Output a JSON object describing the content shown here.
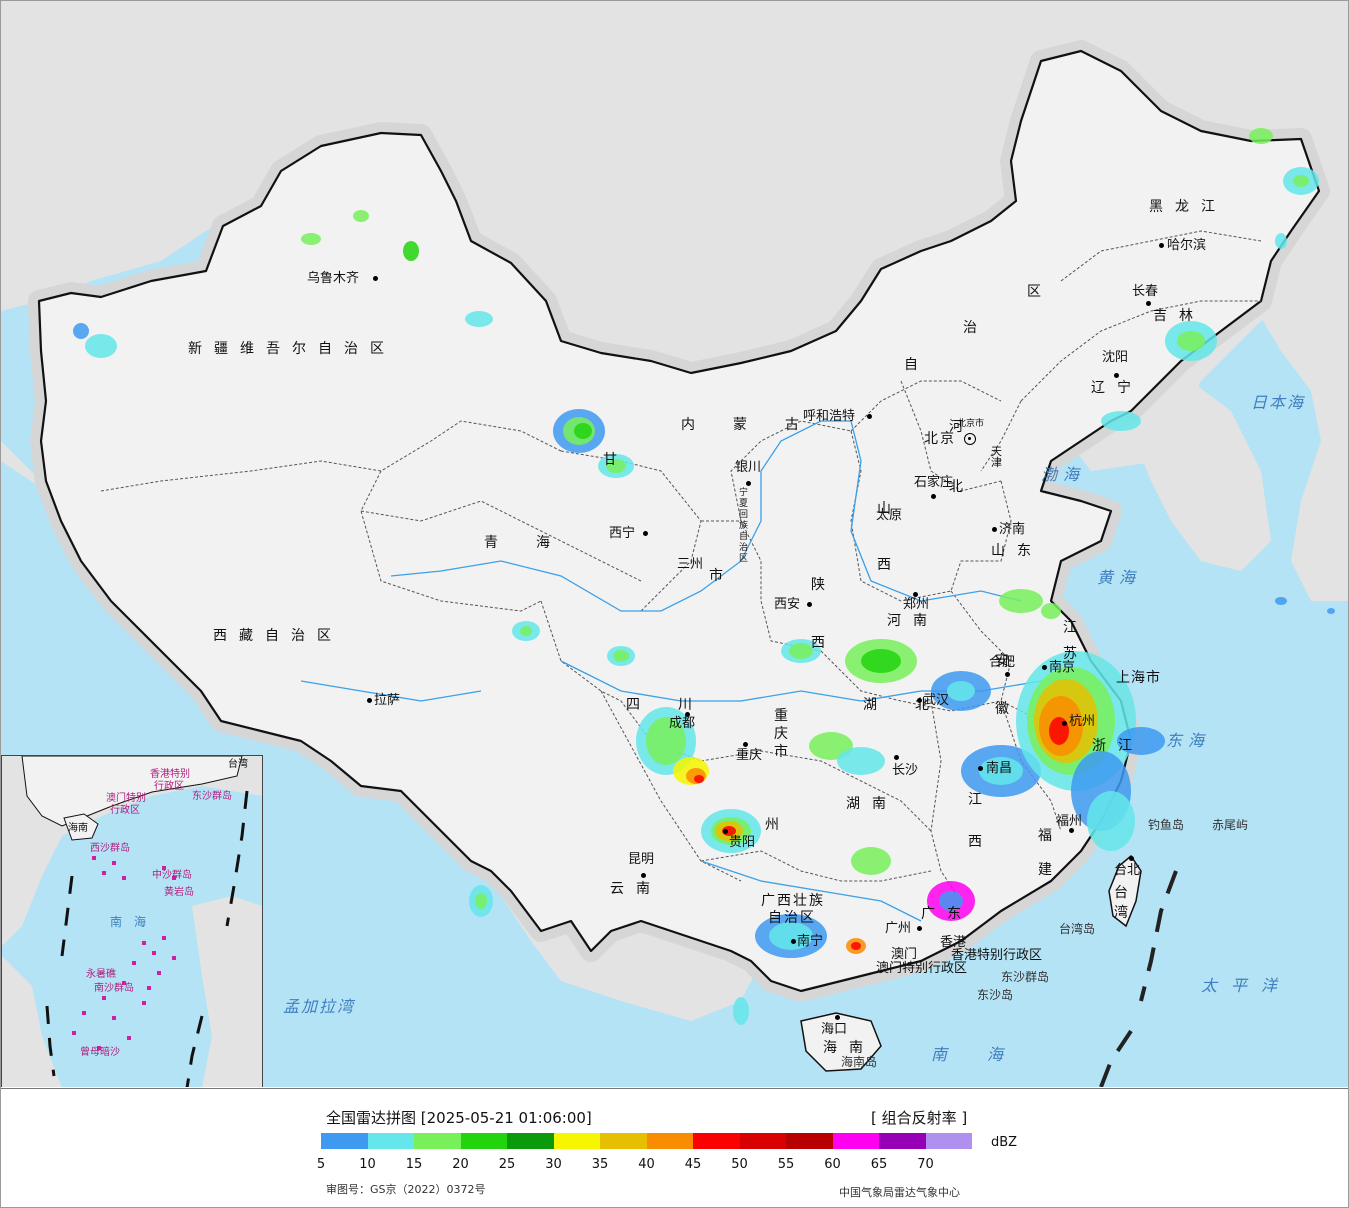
{
  "legend": {
    "title": "全国雷达拼图 [2025-05-21 01:06:00]",
    "product": "[ 组合反射率 ]",
    "unit": "dBZ",
    "review": "审图号：GS京（2022）0372号",
    "org": "中国气象局雷达气象中心",
    "ticks": [
      "5",
      "10",
      "15",
      "20",
      "25",
      "30",
      "35",
      "40",
      "45",
      "50",
      "55",
      "60",
      "65",
      "70"
    ],
    "colors": [
      "#3d9af0",
      "#64e6ea",
      "#78f05a",
      "#22d40e",
      "#0a9a0a",
      "#f6f600",
      "#e6c000",
      "#fa8c00",
      "#fa0000",
      "#d80000",
      "#b80000",
      "#ff00f0",
      "#9800b8",
      "#b090ee"
    ]
  },
  "regions": [
    {
      "key": "xinjiang",
      "text": "新疆维吾尔自治区"
    },
    {
      "key": "xizang",
      "text": "西藏自治区"
    },
    {
      "key": "qinghai",
      "text": "青　海"
    },
    {
      "key": "gansu",
      "text": "甘"
    },
    {
      "key": "neimenggu",
      "text": "内　蒙　古"
    },
    {
      "key": "heilongjiang",
      "text": "黑龙江"
    },
    {
      "key": "jilin",
      "text": "吉林"
    },
    {
      "key": "liaoning",
      "text": "辽宁"
    },
    {
      "key": "hebei",
      "text": "河北"
    },
    {
      "key": "shanxi",
      "text": "山西"
    },
    {
      "key": "shandong",
      "text": "山东"
    },
    {
      "key": "henan",
      "text": "河南"
    },
    {
      "key": "shaanxi",
      "text": "陕西"
    },
    {
      "key": "sichuan",
      "text": "四　川"
    },
    {
      "key": "chongqing",
      "text": "重庆市"
    },
    {
      "key": "guizhou",
      "text": "州"
    },
    {
      "key": "yunnan",
      "text": "云南"
    },
    {
      "key": "hubei",
      "text": "湖　北"
    },
    {
      "key": "hunan",
      "text": "湖南"
    },
    {
      "key": "jiangxi",
      "text": "江西"
    },
    {
      "key": "anhui",
      "text": "安徽"
    },
    {
      "key": "jiangsu",
      "text": "江苏"
    },
    {
      "key": "zhejiang",
      "text": "浙江"
    },
    {
      "key": "fujian",
      "text": "福建"
    },
    {
      "key": "guangdong",
      "text": "广东"
    },
    {
      "key": "guangxi",
      "text": "广西壮族"
    },
    {
      "key": "guangxi2",
      "text": "自治区"
    },
    {
      "key": "hainan",
      "text": "海南"
    },
    {
      "key": "taiwan",
      "text": "台湾"
    },
    {
      "key": "ningxia",
      "text": "宁夏回族自治区"
    },
    {
      "key": "neimeng_qu",
      "text": "区"
    },
    {
      "key": "neimeng_zhi",
      "text": "治"
    },
    {
      "key": "neimeng_zi",
      "text": "自"
    },
    {
      "key": "tianjin",
      "text": "天津"
    },
    {
      "key": "beijing",
      "text": "北京"
    },
    {
      "key": "shanghai",
      "text": "上海市"
    },
    {
      "key": "hongkong",
      "text": "香港特别行政区"
    },
    {
      "key": "macau",
      "text": "澳门特别行政区"
    },
    {
      "key": "sanzhou",
      "text": "三州"
    },
    {
      "key": "gan_shi",
      "text": "市"
    }
  ],
  "cities": [
    {
      "key": "urumqi",
      "text": "乌鲁木齐"
    },
    {
      "key": "lhasa",
      "text": "拉萨"
    },
    {
      "key": "xining",
      "text": "西宁"
    },
    {
      "key": "yinchuan",
      "text": "银川"
    },
    {
      "key": "hohhot",
      "text": "呼和浩特"
    },
    {
      "key": "harbin",
      "text": "哈尔滨"
    },
    {
      "key": "changchun",
      "text": "长春"
    },
    {
      "key": "shenyang",
      "text": "沈阳"
    },
    {
      "key": "shijiazhuang",
      "text": "石家庄"
    },
    {
      "key": "taiyuan",
      "text": "太原"
    },
    {
      "key": "jinan",
      "text": "济南"
    },
    {
      "key": "zhengzhou",
      "text": "郑州"
    },
    {
      "key": "xian",
      "text": "西安"
    },
    {
      "key": "chengdu",
      "text": "成都"
    },
    {
      "key": "chongqing_c",
      "text": "重庆"
    },
    {
      "key": "guiyang",
      "text": "贵阳"
    },
    {
      "key": "kunming",
      "text": "昆明"
    },
    {
      "key": "wuhan",
      "text": "武汉"
    },
    {
      "key": "changsha",
      "text": "长沙"
    },
    {
      "key": "nanchang",
      "text": "南昌"
    },
    {
      "key": "hefei",
      "text": "合肥"
    },
    {
      "key": "nanjing",
      "text": "南京"
    },
    {
      "key": "hangzhou",
      "text": "杭州"
    },
    {
      "key": "fuzhou",
      "text": "福州"
    },
    {
      "key": "guangzhou",
      "text": "广州"
    },
    {
      "key": "nanning",
      "text": "南宁"
    },
    {
      "key": "haikou",
      "text": "海口"
    },
    {
      "key": "taibei",
      "text": "台北"
    },
    {
      "key": "xianggang",
      "text": "香港"
    },
    {
      "key": "aomen",
      "text": "澳门"
    },
    {
      "key": "beijing_city",
      "text": "北京市"
    }
  ],
  "seas": [
    {
      "key": "bohai",
      "text": "渤海"
    },
    {
      "key": "huanghai",
      "text": "黄海"
    },
    {
      "key": "donghai",
      "text": "东海"
    },
    {
      "key": "nanhai",
      "text": "南海"
    },
    {
      "key": "taipingyang",
      "text": "太平洋"
    },
    {
      "key": "ribenhai",
      "text": "日本海"
    },
    {
      "key": "mengjiala",
      "text": "孟加拉湾"
    }
  ],
  "islands": [
    {
      "key": "diaoyu",
      "text": "钓鱼岛"
    },
    {
      "key": "chiwei",
      "text": "赤尾屿"
    },
    {
      "key": "taiwan_dao",
      "text": "台湾岛"
    },
    {
      "key": "dongsha",
      "text": "东沙群岛"
    },
    {
      "key": "dongsha2",
      "text": "东沙岛"
    },
    {
      "key": "hainan_dao",
      "text": "海南岛"
    }
  ],
  "inset": {
    "labels": [
      {
        "key": "i_hk",
        "text": "香港特别"
      },
      {
        "key": "i_hk2",
        "text": "行政区"
      },
      {
        "key": "i_mo",
        "text": "澳门特别"
      },
      {
        "key": "i_mo2",
        "text": "行政区"
      },
      {
        "key": "i_taiwan",
        "text": "台湾"
      },
      {
        "key": "i_dongsha",
        "text": "东沙群岛"
      },
      {
        "key": "i_hainan",
        "text": "海南"
      },
      {
        "key": "i_xisha",
        "text": "西沙群岛"
      },
      {
        "key": "i_zhongsha",
        "text": "中沙群岛"
      },
      {
        "key": "i_huangyan",
        "text": "黄岩岛"
      },
      {
        "key": "i_nanhai",
        "text": "南　海"
      },
      {
        "key": "i_nansha",
        "text": "南沙群岛"
      },
      {
        "key": "i_yongshu",
        "text": "永暑礁"
      },
      {
        "key": "i_zengmu",
        "text": "曾母暗沙"
      }
    ]
  }
}
